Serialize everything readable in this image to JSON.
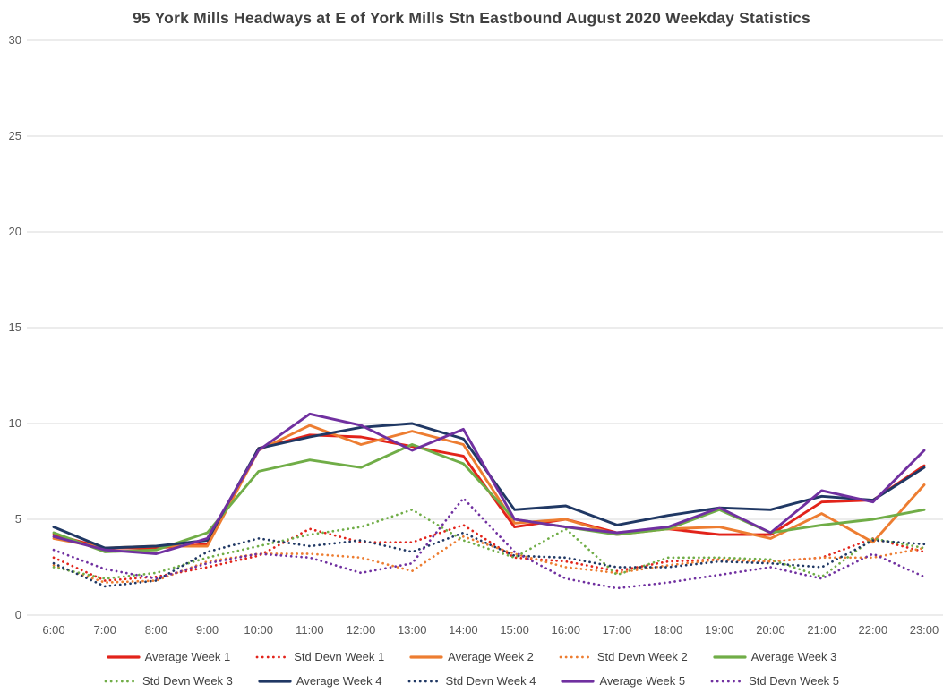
{
  "chart_data": {
    "type": "line",
    "title": "95 York Mills Headways at E of York Mills Stn Eastbound August 2020 Weekday Statistics",
    "xlabel": "",
    "ylabel": "",
    "ylim": [
      0,
      30
    ],
    "yticks": [
      0,
      5,
      10,
      15,
      20,
      25,
      30
    ],
    "grid": "horizontal",
    "legend_position": "bottom",
    "legend_per_row": 5,
    "grid_color": "#d9d9d9",
    "axis_label_color": "#595959",
    "title_color": "#404040",
    "x": [
      "6:00",
      "7:00",
      "8:00",
      "9:00",
      "10:00",
      "11:00",
      "12:00",
      "13:00",
      "14:00",
      "15:00",
      "16:00",
      "17:00",
      "18:00",
      "19:00",
      "20:00",
      "21:00",
      "22:00",
      "23:00"
    ],
    "series": [
      {
        "name": "Average Week 1",
        "color": "#e2231a",
        "style": "solid",
        "values": [
          4.2,
          3.5,
          3.5,
          3.7,
          8.7,
          9.4,
          9.3,
          8.8,
          8.3,
          4.6,
          5.0,
          4.3,
          4.5,
          4.2,
          4.2,
          5.9,
          6.0,
          7.8
        ]
      },
      {
        "name": "Std Devn Week 1",
        "color": "#e2231a",
        "style": "dotted",
        "values": [
          3.0,
          1.8,
          2.0,
          2.5,
          3.1,
          4.5,
          3.8,
          3.8,
          4.7,
          3.0,
          2.8,
          2.3,
          2.8,
          2.9,
          2.8,
          3.0,
          4.0,
          3.3
        ]
      },
      {
        "name": "Average Week 2",
        "color": "#ed7d31",
        "style": "solid",
        "values": [
          4.0,
          3.5,
          3.6,
          3.6,
          8.6,
          9.9,
          8.9,
          9.6,
          8.9,
          4.8,
          5.0,
          4.2,
          4.5,
          4.6,
          4.0,
          5.3,
          3.8,
          6.8
        ]
      },
      {
        "name": "Std Devn Week 2",
        "color": "#ed7d31",
        "style": "dotted",
        "values": [
          2.6,
          1.7,
          1.8,
          2.8,
          3.2,
          3.2,
          3.0,
          2.3,
          4.1,
          3.2,
          2.5,
          2.2,
          2.6,
          2.9,
          2.8,
          3.0,
          3.0,
          3.5
        ]
      },
      {
        "name": "Average Week 3",
        "color": "#70ad47",
        "style": "solid",
        "values": [
          4.3,
          3.3,
          3.4,
          4.3,
          7.5,
          8.1,
          7.7,
          8.9,
          7.9,
          5.0,
          4.6,
          4.2,
          4.5,
          5.5,
          4.3,
          4.7,
          5.0,
          5.5
        ]
      },
      {
        "name": "Std Devn Week 3",
        "color": "#70ad47",
        "style": "dotted",
        "values": [
          2.5,
          1.9,
          2.2,
          3.0,
          3.6,
          4.2,
          4.6,
          5.5,
          3.9,
          3.0,
          4.5,
          2.1,
          3.0,
          3.0,
          2.9,
          2.0,
          4.0,
          3.5
        ]
      },
      {
        "name": "Average Week 4",
        "color": "#203864",
        "style": "solid",
        "values": [
          4.6,
          3.5,
          3.6,
          3.9,
          8.7,
          9.3,
          9.8,
          10.0,
          9.2,
          5.5,
          5.7,
          4.7,
          5.2,
          5.6,
          5.5,
          6.2,
          6.0,
          7.7
        ]
      },
      {
        "name": "Std Devn Week 4",
        "color": "#203864",
        "style": "dotted",
        "values": [
          2.7,
          1.5,
          1.8,
          3.3,
          4.0,
          3.6,
          3.9,
          3.3,
          4.3,
          3.1,
          3.0,
          2.5,
          2.5,
          2.8,
          2.7,
          2.5,
          3.9,
          3.7
        ]
      },
      {
        "name": "Average Week 5",
        "color": "#7030a0",
        "style": "solid",
        "values": [
          4.1,
          3.4,
          3.2,
          4.0,
          8.6,
          10.5,
          9.9,
          8.6,
          9.7,
          5.0,
          4.6,
          4.3,
          4.6,
          5.6,
          4.3,
          6.5,
          5.9,
          8.6
        ]
      },
      {
        "name": "Std Devn Week 5",
        "color": "#7030a0",
        "style": "dotted",
        "values": [
          3.4,
          2.4,
          1.9,
          2.7,
          3.2,
          3.0,
          2.2,
          2.7,
          6.1,
          3.3,
          1.9,
          1.4,
          1.7,
          2.1,
          2.5,
          1.9,
          3.2,
          2.0
        ]
      }
    ]
  }
}
